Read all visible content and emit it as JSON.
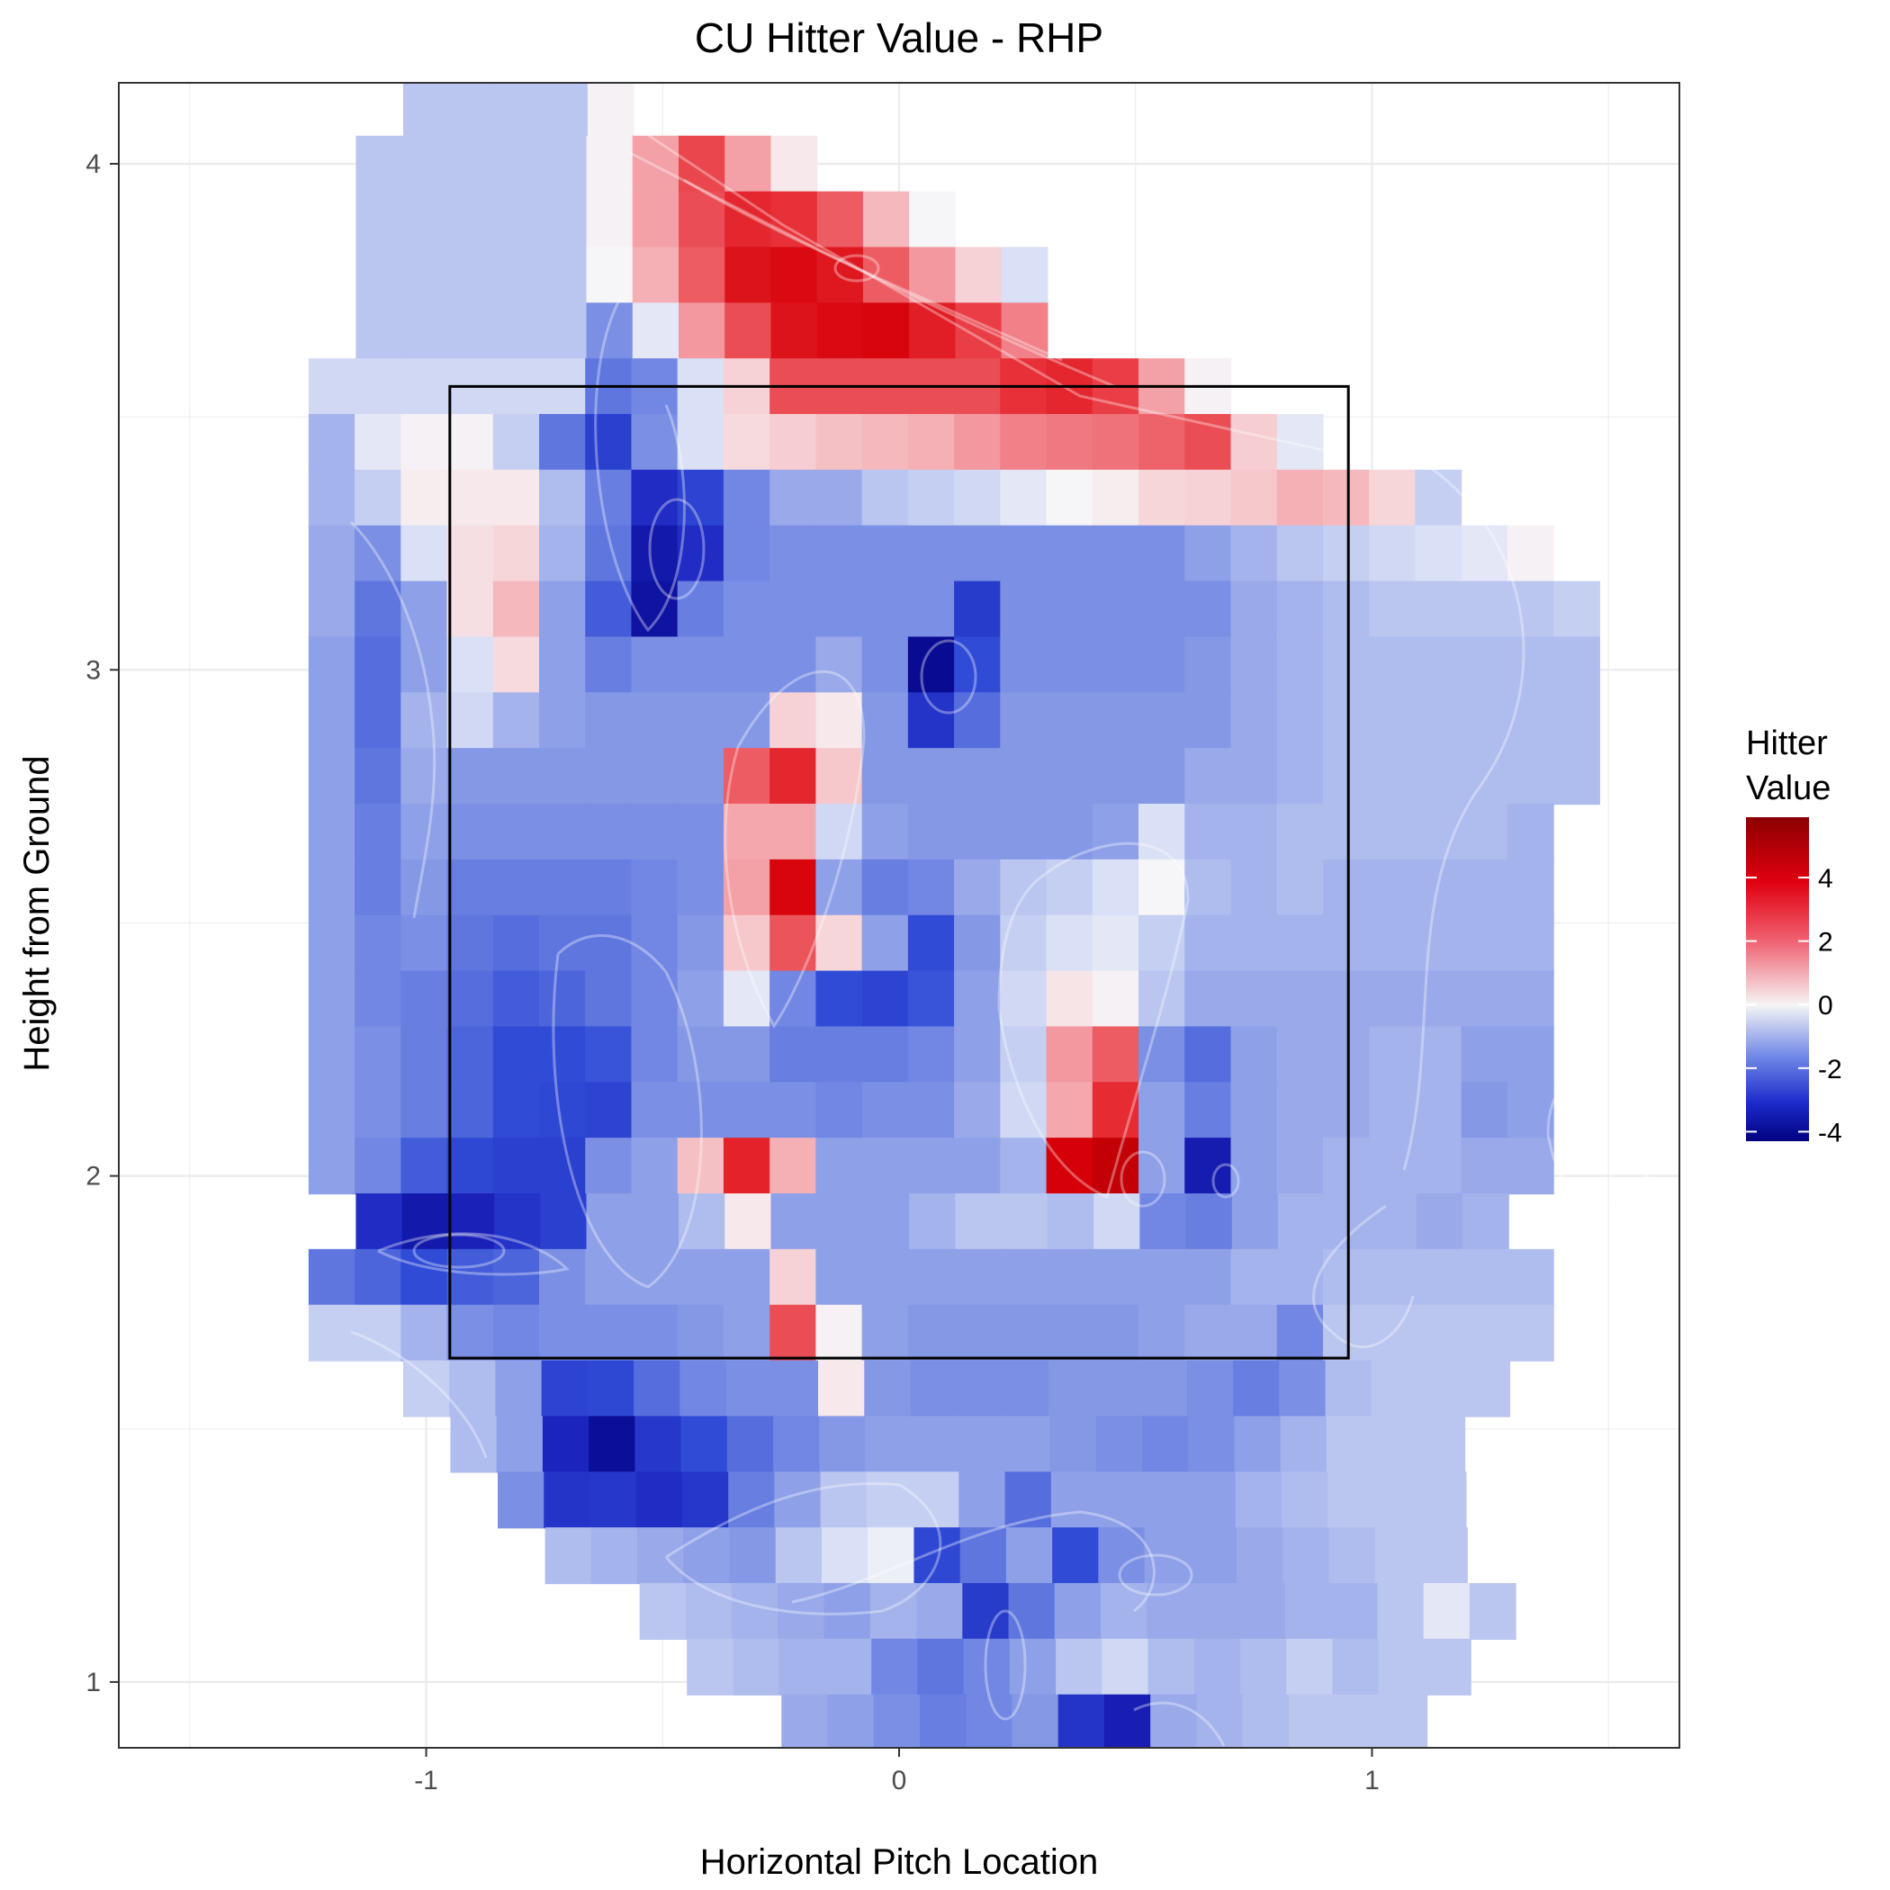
{
  "chart_data": {
    "type": "heatmap",
    "title": "CU Hitter Value - RHP",
    "xlabel": "Horizontal Pitch Location",
    "ylabel": "Height from Ground",
    "xlim": [
      -1.65,
      1.65
    ],
    "ylim": [
      0.87,
      4.16
    ],
    "x_ticks": [
      -1,
      0,
      1
    ],
    "y_ticks": [
      1,
      2,
      3,
      4
    ],
    "x_tick_labels": [
      "-1",
      "0",
      "1"
    ],
    "y_tick_labels": [
      "1",
      "2",
      "3",
      "4"
    ],
    "tile_width": 0.0975,
    "tile_height": 0.111,
    "strike_zone": {
      "x": [
        -0.95,
        0.95
      ],
      "y": [
        1.64,
        3.56
      ]
    },
    "color_scale": {
      "low": "#000080",
      "mid": "#f5f5f5",
      "high": "#8b0000",
      "limits": [
        -4.3,
        5.9
      ]
    },
    "grid": true,
    "legend": {
      "title_lines": [
        "Hitter",
        "Value"
      ],
      "breaks": [
        4,
        2,
        0,
        -2,
        -4
      ],
      "labels": [
        "4",
        "2",
        "0",
        "-2",
        "-4"
      ],
      "position": "right"
    },
    "heatmap_rows": [
      {
        "y": 4.11,
        "x_start": -1.0,
        "values": [
          -0.6,
          -0.6,
          -0.6,
          -0.6,
          0.1
        ]
      },
      {
        "y": 4.0,
        "x_start": -1.1,
        "values": [
          -0.6,
          -0.6,
          -0.6,
          -0.6,
          -0.6,
          0.1,
          1.5,
          2.7,
          1.5,
          0.3
        ]
      },
      {
        "y": 3.89,
        "x_start": -1.1,
        "values": [
          -0.6,
          -0.6,
          -0.6,
          -0.6,
          -0.6,
          0.1,
          1.5,
          2.6,
          3.2,
          3.0,
          2.4,
          1.2,
          0.0
        ]
      },
      {
        "y": 3.78,
        "x_start": -1.1,
        "values": [
          -0.6,
          -0.6,
          -0.6,
          -0.6,
          -0.6,
          0.0,
          1.3,
          2.4,
          3.6,
          3.8,
          3.5,
          2.4,
          1.6,
          0.8,
          -0.3
        ]
      },
      {
        "y": 3.67,
        "x_start": -1.1,
        "values": [
          -0.6,
          -0.6,
          -0.6,
          -0.6,
          -0.6,
          -1.2,
          -0.2,
          1.6,
          2.6,
          3.6,
          3.8,
          3.9,
          3.4,
          2.8,
          1.9
        ]
      },
      {
        "y": 3.56,
        "x_start": -1.2,
        "values": [
          -0.4,
          -0.4,
          -0.4,
          -0.4,
          -0.4,
          -0.4,
          -1.5,
          -1.3,
          -0.3,
          0.8,
          2.6,
          2.6,
          2.6,
          2.6,
          2.6,
          3.0,
          3.2,
          2.8,
          1.5,
          0.1
        ]
      },
      {
        "y": 3.45,
        "x_start": -1.2,
        "values": [
          -0.8,
          -0.2,
          0.1,
          0.1,
          -0.5,
          -1.5,
          -2.3,
          -1.2,
          -0.3,
          0.6,
          0.9,
          1.1,
          1.2,
          1.3,
          1.6,
          1.9,
          2.0,
          2.1,
          2.3,
          2.6,
          0.9,
          -0.2
        ]
      },
      {
        "y": 3.34,
        "x_start": -1.2,
        "values": [
          -0.8,
          -0.5,
          0.2,
          0.3,
          0.3,
          -0.7,
          -1.4,
          -2.8,
          -2.2,
          -1.3,
          -0.9,
          -0.9,
          -0.6,
          -0.5,
          -0.4,
          -0.2,
          0.0,
          0.2,
          0.7,
          0.8,
          1.0,
          1.3,
          1.2,
          0.7,
          -0.5
        ]
      },
      {
        "y": 3.23,
        "x_start": -1.2,
        "values": [
          -0.9,
          -1.2,
          -0.3,
          0.5,
          0.7,
          -0.8,
          -1.5,
          -3.4,
          -2.8,
          -1.3,
          -1.2,
          -1.2,
          -1.2,
          -1.2,
          -1.2,
          -1.2,
          -1.2,
          -1.2,
          -1.2,
          -1.0,
          -0.8,
          -0.6,
          -0.5,
          -0.4,
          -0.3,
          -0.2,
          0.1
        ]
      },
      {
        "y": 3.12,
        "x_start": -1.2,
        "values": [
          -0.9,
          -1.5,
          -1.0,
          0.5,
          1.2,
          -1.0,
          -1.8,
          -3.6,
          -1.4,
          -1.2,
          -1.2,
          -1.2,
          -1.2,
          -1.2,
          -2.4,
          -1.2,
          -1.2,
          -1.2,
          -1.2,
          -1.2,
          -0.9,
          -0.8,
          -0.7,
          -0.6,
          -0.6,
          -0.6,
          -0.6,
          -0.5
        ]
      },
      {
        "y": 3.01,
        "x_start": -1.2,
        "values": [
          -1.0,
          -1.6,
          -1.0,
          -0.3,
          0.6,
          -1.0,
          -1.4,
          -1.2,
          -1.2,
          -1.2,
          -1.2,
          -0.9,
          -1.2,
          -3.9,
          -2.0,
          -1.2,
          -1.2,
          -1.2,
          -1.2,
          -1.1,
          -0.9,
          -0.8,
          -0.7,
          -0.7,
          -0.7,
          -0.7,
          -0.7,
          -0.7
        ]
      },
      {
        "y": 2.9,
        "x_start": -1.2,
        "values": [
          -1.0,
          -1.6,
          -0.8,
          -0.4,
          -0.8,
          -1.0,
          -1.1,
          -1.1,
          -1.1,
          -1.1,
          0.8,
          0.3,
          -1.1,
          -2.6,
          -1.6,
          -1.1,
          -1.1,
          -1.1,
          -1.1,
          -1.1,
          -0.9,
          -0.8,
          -0.7,
          -0.7,
          -0.7,
          -0.7,
          -0.7,
          -0.7
        ]
      },
      {
        "y": 2.79,
        "x_start": -1.2,
        "values": [
          -1.0,
          -1.5,
          -0.9,
          -1.1,
          -1.1,
          -1.1,
          -1.1,
          -1.1,
          -1.1,
          2.4,
          3.2,
          1.0,
          -1.1,
          -1.1,
          -1.1,
          -1.1,
          -1.1,
          -1.1,
          -1.1,
          -0.9,
          -0.9,
          -0.8,
          -0.7,
          -0.7,
          -0.7,
          -0.7,
          -0.7,
          -0.7
        ]
      },
      {
        "y": 2.68,
        "x_start": -1.2,
        "values": [
          -1.0,
          -1.4,
          -1.0,
          -1.2,
          -1.2,
          -1.2,
          -1.2,
          -1.2,
          -1.2,
          1.4,
          1.4,
          -0.4,
          -1.0,
          -1.1,
          -1.1,
          -1.1,
          -1.1,
          -1.0,
          -0.3,
          -0.8,
          -0.8,
          -0.7,
          -0.7,
          -0.7,
          -0.7,
          -0.7,
          -0.8
        ]
      },
      {
        "y": 2.57,
        "x_start": -1.2,
        "values": [
          -1.0,
          -1.4,
          -1.1,
          -1.4,
          -1.4,
          -1.4,
          -1.4,
          -1.3,
          -1.2,
          1.5,
          3.9,
          -1.0,
          -1.4,
          -1.3,
          -0.9,
          -0.6,
          -0.5,
          -0.3,
          0.0,
          -0.7,
          -0.8,
          -0.7,
          -0.8,
          -0.8,
          -0.8,
          -0.8,
          -0.8
        ]
      },
      {
        "y": 2.46,
        "x_start": -1.2,
        "values": [
          -1.0,
          -1.3,
          -1.2,
          -1.5,
          -1.6,
          -1.5,
          -1.5,
          -1.3,
          -1.1,
          1.0,
          2.5,
          0.7,
          -1.0,
          -2.0,
          -1.1,
          -0.5,
          -0.3,
          -0.2,
          -0.5,
          -0.8,
          -0.8,
          -0.8,
          -0.8,
          -0.8,
          -0.8,
          -0.8,
          -0.8
        ]
      },
      {
        "y": 2.35,
        "x_start": -1.2,
        "values": [
          -1.0,
          -1.3,
          -1.4,
          -1.6,
          -1.8,
          -1.7,
          -1.5,
          -1.3,
          -1.0,
          -0.2,
          -1.3,
          -2.0,
          -2.2,
          -1.9,
          -1.0,
          -0.4,
          0.4,
          0.1,
          -0.6,
          -0.9,
          -0.9,
          -0.9,
          -0.9,
          -0.9,
          -0.9,
          -0.9,
          -0.9
        ]
      },
      {
        "y": 2.24,
        "x_start": -1.2,
        "values": [
          -1.0,
          -1.2,
          -1.4,
          -1.7,
          -2.0,
          -2.0,
          -1.9,
          -1.3,
          -1.1,
          -1.1,
          -1.4,
          -1.4,
          -1.4,
          -1.3,
          -1.0,
          -0.5,
          1.6,
          2.4,
          -1.2,
          -1.6,
          -1.0,
          -0.9,
          -0.9,
          -0.8,
          -0.8,
          -1.0,
          -1.0
        ]
      },
      {
        "y": 2.13,
        "x_start": -1.2,
        "values": [
          -1.0,
          -1.2,
          -1.4,
          -1.7,
          -2.0,
          -2.1,
          -2.2,
          -1.2,
          -1.2,
          -1.2,
          -1.2,
          -1.3,
          -1.2,
          -1.2,
          -0.9,
          -0.4,
          1.4,
          3.1,
          -1.0,
          -1.4,
          -1.0,
          -0.9,
          -0.9,
          -0.8,
          -0.8,
          -1.1,
          -1.0
        ]
      },
      {
        "y": 2.02,
        "x_start": -1.2,
        "values": [
          -1.0,
          -1.3,
          -1.8,
          -2.1,
          -2.3,
          -2.3,
          -1.2,
          -1.0,
          1.1,
          3.3,
          1.3,
          -1.0,
          -1.0,
          -1.0,
          -1.0,
          -0.8,
          4.0,
          4.5,
          -1.0,
          -3.3,
          -1.0,
          -0.9,
          -0.8,
          -0.8,
          -0.8,
          -0.9,
          -0.9
        ]
      },
      {
        "y": 1.91,
        "x_start": -1.1,
        "values": [
          -2.8,
          -3.4,
          -3.1,
          -2.6,
          -2.3,
          -1.0,
          -1.0,
          -0.7,
          0.3,
          -1.0,
          -1.0,
          -1.0,
          -0.8,
          -0.6,
          -0.6,
          -0.7,
          -0.4,
          -1.3,
          -1.4,
          -1.0,
          -0.8,
          -0.8,
          -0.8,
          -0.9,
          -0.8
        ]
      },
      {
        "y": 1.8,
        "x_start": -1.2,
        "values": [
          -1.5,
          -1.7,
          -2.0,
          -1.8,
          -1.7,
          -1.2,
          -1.0,
          -1.0,
          -1.0,
          -1.0,
          0.8,
          -1.0,
          -1.0,
          -1.0,
          -1.0,
          -1.0,
          -1.0,
          -1.0,
          -1.0,
          -1.0,
          -0.8,
          -0.8,
          -0.7,
          -0.7,
          -0.7,
          -0.7,
          -0.7
        ]
      },
      {
        "y": 1.69,
        "x_start": -1.2,
        "values": [
          -0.5,
          -0.5,
          -0.8,
          -1.2,
          -1.3,
          -1.2,
          -1.2,
          -1.2,
          -1.1,
          -1.0,
          2.6,
          0.1,
          -1.0,
          -1.1,
          -1.1,
          -1.1,
          -1.1,
          -1.1,
          -1.0,
          -0.9,
          -0.9,
          -1.3,
          -0.6,
          -0.6,
          -0.6,
          -0.6,
          -0.6
        ]
      },
      {
        "y": 1.58,
        "x_start": -1.0,
        "values": [
          -0.5,
          -0.7,
          -1.0,
          -2.2,
          -2.1,
          -1.6,
          -1.3,
          -1.2,
          -1.2,
          0.3,
          -1.1,
          -1.2,
          -1.2,
          -1.2,
          -1.1,
          -1.1,
          -1.1,
          -1.2,
          -1.4,
          -1.2,
          -0.7,
          -0.6,
          -0.6,
          -0.6
        ]
      },
      {
        "y": 1.47,
        "x_start": -0.9,
        "values": [
          -0.7,
          -1.0,
          -3.0,
          -3.8,
          -2.5,
          -2.0,
          -1.6,
          -1.3,
          -1.1,
          -1.0,
          -1.0,
          -1.0,
          -1.0,
          -1.1,
          -1.2,
          -1.3,
          -1.2,
          -1.0,
          -0.8,
          -0.6,
          -0.6,
          -0.6
        ]
      },
      {
        "y": 1.36,
        "x_start": -0.8,
        "values": [
          -1.2,
          -2.6,
          -2.5,
          -2.8,
          -2.5,
          -1.4,
          -1.0,
          -0.6,
          -0.5,
          -0.5,
          -1.0,
          -1.6,
          -1.0,
          -1.0,
          -1.0,
          -1.0,
          -0.8,
          -0.7,
          -0.6,
          -0.6,
          -0.6
        ]
      },
      {
        "y": 1.25,
        "x_start": -0.7,
        "values": [
          -0.7,
          -0.8,
          -0.9,
          -1.0,
          -1.1,
          -0.6,
          -0.3,
          -0.1,
          -2.1,
          -1.5,
          -1.0,
          -2.0,
          -1.2,
          -1.0,
          -1.0,
          -0.9,
          -0.8,
          -0.7,
          -0.6,
          -0.6
        ]
      },
      {
        "y": 1.14,
        "x_start": -0.5,
        "values": [
          -0.6,
          -0.7,
          -0.8,
          -0.9,
          -1.0,
          -0.8,
          -0.9,
          -2.4,
          -1.5,
          -1.0,
          -0.8,
          -0.9,
          -0.9,
          -0.9,
          -0.8,
          -0.8,
          -0.6,
          -0.2,
          -0.6
        ]
      },
      {
        "y": 1.03,
        "x_start": -0.4,
        "values": [
          -0.6,
          -0.7,
          -0.8,
          -0.8,
          -1.3,
          -1.5,
          -1.3,
          -1.0,
          -0.6,
          -0.4,
          -0.7,
          -0.8,
          -0.7,
          -0.5,
          -0.7,
          -0.6,
          -0.6
        ]
      },
      {
        "y": 0.92,
        "x_start": -0.2,
        "values": [
          -0.9,
          -1.0,
          -1.2,
          -1.4,
          -1.3,
          -1.1,
          -2.6,
          -3.2,
          -0.9,
          -0.8,
          -0.7,
          -0.6,
          -0.6,
          -0.6
        ]
      }
    ]
  }
}
